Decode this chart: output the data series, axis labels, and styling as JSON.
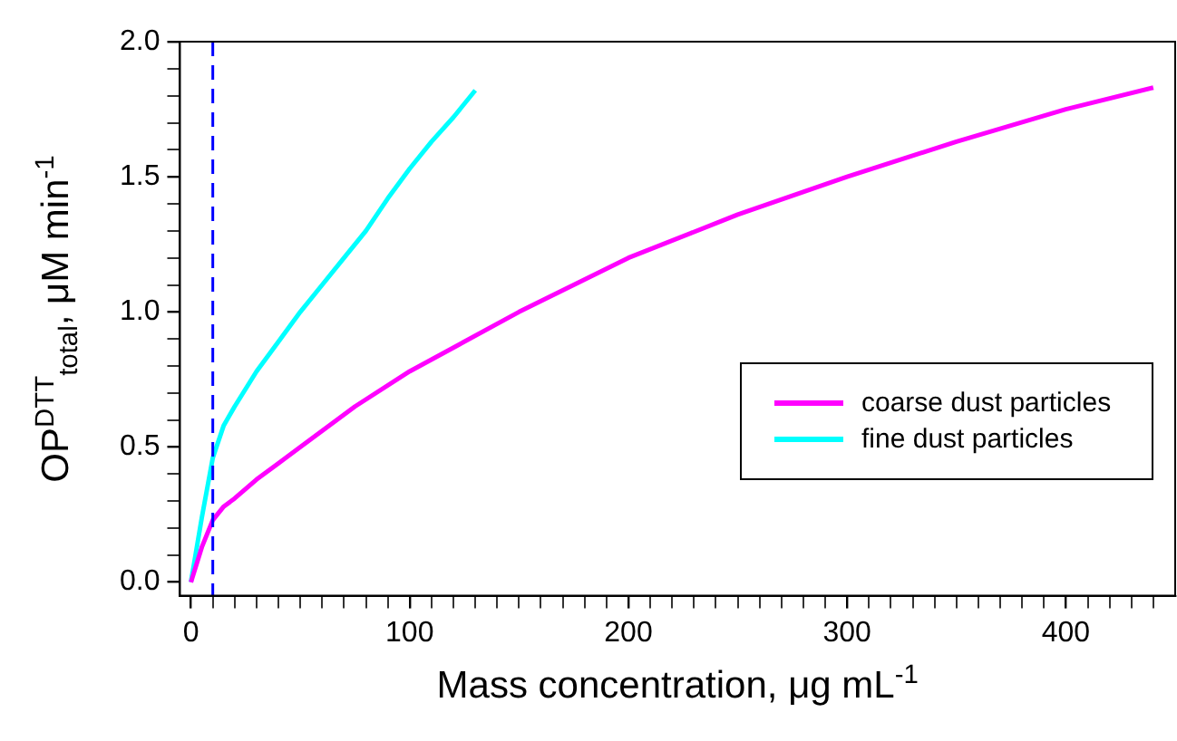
{
  "chart_data": {
    "type": "line",
    "xlabel": "Mass concentration, μg mL$^{-1}$",
    "ylabel": "OP$^{DTT}$$_{total}$, μM min$^{-1}$",
    "xlim": [
      -5,
      450
    ],
    "ylim": [
      -0.05,
      2.0
    ],
    "xticks": [
      0,
      {
        "value": 10,
        "label": null
      },
      {
        "value": 20,
        "label": null
      },
      {
        "value": 30,
        "label": null
      },
      {
        "value": 40,
        "label": null
      },
      {
        "value": 50,
        "label": null
      },
      {
        "value": 60,
        "label": null
      },
      {
        "value": 70,
        "label": null
      },
      {
        "value": 80,
        "label": null
      },
      {
        "value": 90,
        "label": null
      },
      100,
      {
        "value": 110,
        "label": null
      },
      {
        "value": 120,
        "label": null
      },
      {
        "value": 130,
        "label": null
      },
      {
        "value": 140,
        "label": null
      },
      {
        "value": 150,
        "label": null
      },
      {
        "value": 160,
        "label": null
      },
      {
        "value": 170,
        "label": null
      },
      {
        "value": 180,
        "label": null
      },
      {
        "value": 190,
        "label": null
      },
      200,
      {
        "value": 210,
        "label": null
      },
      {
        "value": 220,
        "label": null
      },
      {
        "value": 230,
        "label": null
      },
      {
        "value": 240,
        "label": null
      },
      {
        "value": 250,
        "label": null
      },
      {
        "value": 260,
        "label": null
      },
      {
        "value": 270,
        "label": null
      },
      {
        "value": 280,
        "label": null
      },
      {
        "value": 290,
        "label": null
      },
      300,
      {
        "value": 310,
        "label": null
      },
      {
        "value": 320,
        "label": null
      },
      {
        "value": 330,
        "label": null
      },
      {
        "value": 340,
        "label": null
      },
      {
        "value": 350,
        "label": null
      },
      {
        "value": 360,
        "label": null
      },
      {
        "value": 370,
        "label": null
      },
      {
        "value": 380,
        "label": null
      },
      {
        "value": 390,
        "label": null
      },
      400,
      {
        "value": 410,
        "label": null
      },
      {
        "value": 420,
        "label": null
      },
      {
        "value": 430,
        "label": null
      },
      {
        "value": 440,
        "label": null
      }
    ],
    "yticks": [
      {
        "value": 0,
        "label": "0.0"
      },
      {
        "value": 0.1,
        "label": null
      },
      {
        "value": 0.2,
        "label": null
      },
      {
        "value": 0.3,
        "label": null
      },
      {
        "value": 0.4,
        "label": null
      },
      {
        "value": 0.5,
        "label": "0.5"
      },
      {
        "value": 0.6,
        "label": null
      },
      {
        "value": 0.7,
        "label": null
      },
      {
        "value": 0.8,
        "label": null
      },
      {
        "value": 0.9,
        "label": null
      },
      {
        "value": 1.0,
        "label": "1.0"
      },
      {
        "value": 1.1,
        "label": null
      },
      {
        "value": 1.2,
        "label": null
      },
      {
        "value": 1.3,
        "label": null
      },
      {
        "value": 1.4,
        "label": null
      },
      {
        "value": 1.5,
        "label": "1.5"
      },
      {
        "value": 1.6,
        "label": null
      },
      {
        "value": 1.7,
        "label": null
      },
      {
        "value": 1.8,
        "label": null
      },
      {
        "value": 1.9,
        "label": null
      },
      {
        "value": 2.0,
        "label": "2.0"
      }
    ],
    "grid": false,
    "legend": "right",
    "marker": "none",
    "line_style": "solid",
    "ref_lines": [
      {
        "axis": "x",
        "value": 10,
        "color": "#0000ff",
        "line_style": "dashed"
      }
    ],
    "series": [
      {
        "name": "coarse dust particles",
        "color": "#ff00ff",
        "x": [
          0,
          5,
          10,
          15,
          20,
          30,
          40,
          50,
          75,
          100,
          150,
          200,
          250,
          300,
          350,
          400,
          440
        ],
        "values": [
          0,
          0.13,
          0.23,
          0.28,
          0.31,
          0.38,
          0.44,
          0.5,
          0.65,
          0.78,
          1.0,
          1.2,
          1.36,
          1.5,
          1.63,
          1.75,
          1.83
        ]
      },
      {
        "name": "fine dust particles",
        "color": "#00ffff",
        "x": [
          0,
          5,
          10,
          15,
          20,
          30,
          40,
          50,
          60,
          70,
          80,
          90,
          100,
          110,
          120,
          130
        ],
        "values": [
          0,
          0.24,
          0.46,
          0.58,
          0.65,
          0.78,
          0.89,
          1.0,
          1.1,
          1.2,
          1.3,
          1.42,
          1.53,
          1.63,
          1.72,
          1.82
        ]
      }
    ]
  }
}
